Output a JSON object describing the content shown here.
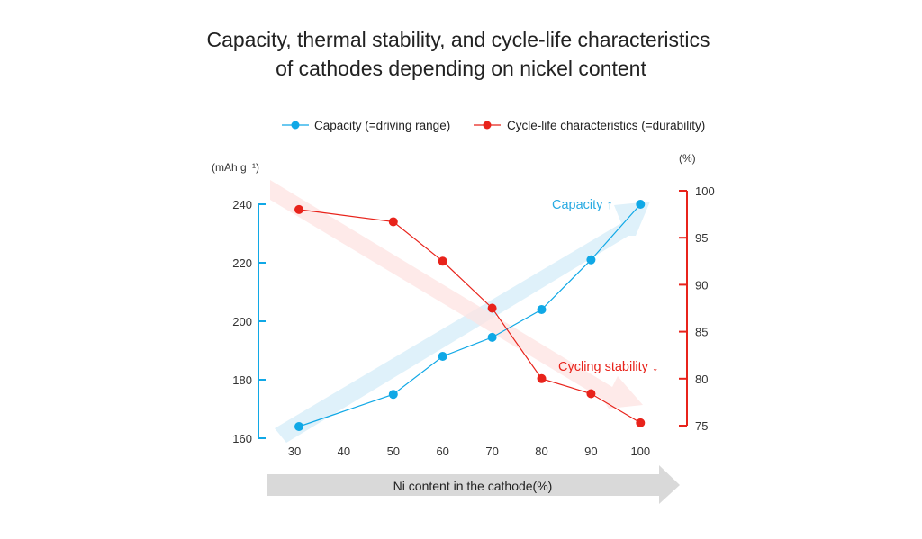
{
  "chart_data": {
    "type": "line",
    "title": "Capacity, thermal stability, and cycle-life characteristics of cathodes depending on nickel content",
    "title_lines": [
      "Capacity, thermal stability, and cycle-life characteristics",
      "of cathodes depending on nickel content"
    ],
    "xlabel": "Ni content in the cathode(%)",
    "x_ticks": [
      "30",
      "40",
      "50",
      "60",
      "70",
      "80",
      "90",
      "100"
    ],
    "x": [
      30,
      50,
      60,
      70,
      80,
      90,
      100
    ],
    "y_left": {
      "label": "(mAh g⁻¹)",
      "ticks": [
        "160",
        "180",
        "200",
        "220",
        "240"
      ],
      "ylim": [
        160,
        240
      ],
      "color": "#10a8e6"
    },
    "y_right": {
      "label": "(%)",
      "ticks": [
        "75",
        "80",
        "85",
        "90",
        "95",
        "100"
      ],
      "ylim": [
        75,
        100
      ],
      "color": "#e8231b"
    },
    "series": [
      {
        "name": "Capacity (=driving range)",
        "axis": "left",
        "color": "#10a8e6",
        "values": [
          164,
          175,
          188,
          194.5,
          204,
          221,
          240
        ]
      },
      {
        "name": "Cycle-life characteristics (=durability)",
        "axis": "right",
        "color": "#e8231b",
        "values": [
          98,
          96.7,
          92.5,
          87.5,
          80,
          78.4,
          75.3
        ]
      }
    ],
    "annotations": {
      "capacity": "Capacity ↑",
      "cycling": "Cycling stability ↓"
    },
    "legend_placement": "top",
    "grid": false
  }
}
